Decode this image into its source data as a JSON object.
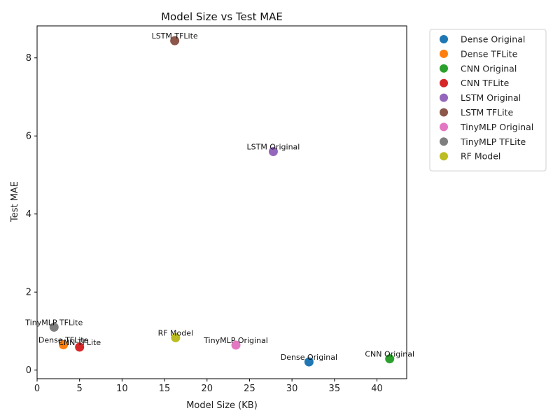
{
  "chart_data": {
    "type": "scatter",
    "title": "Model Size vs Test MAE",
    "xlabel": "Model Size (KB)",
    "ylabel": "Test MAE",
    "xlim": [
      0,
      43.5
    ],
    "ylim": [
      -0.22,
      8.82
    ],
    "xticks": [
      0,
      5,
      10,
      15,
      20,
      25,
      30,
      35,
      40
    ],
    "yticks": [
      0,
      2,
      4,
      6,
      8
    ],
    "grid": false,
    "legend_position": "outside-right",
    "points": [
      {
        "name": "Dense Original",
        "x": 32.0,
        "y": 0.21,
        "color": "#1f77b4"
      },
      {
        "name": "Dense TFLite",
        "x": 3.1,
        "y": 0.65,
        "color": "#ff7f0e"
      },
      {
        "name": "CNN Original",
        "x": 41.5,
        "y": 0.29,
        "color": "#2ca02c"
      },
      {
        "name": "CNN TFLite",
        "x": 5.0,
        "y": 0.59,
        "color": "#d62728"
      },
      {
        "name": "LSTM Original",
        "x": 27.8,
        "y": 5.6,
        "color": "#9467bd"
      },
      {
        "name": "LSTM TFLite",
        "x": 16.2,
        "y": 8.44,
        "color": "#8c564b"
      },
      {
        "name": "TinyMLP Original",
        "x": 23.4,
        "y": 0.64,
        "color": "#e377c2"
      },
      {
        "name": "TinyMLP TFLite",
        "x": 2.0,
        "y": 1.1,
        "color": "#7f7f7f"
      },
      {
        "name": "RF Model",
        "x": 16.3,
        "y": 0.83,
        "color": "#bcbd22"
      }
    ]
  }
}
